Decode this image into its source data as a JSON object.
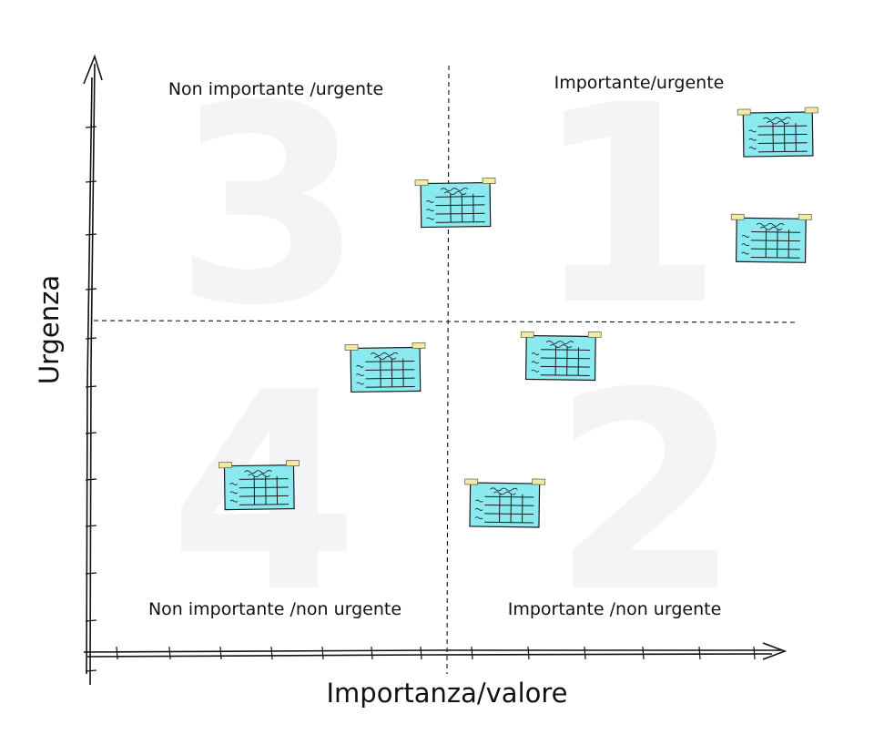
{
  "axes": {
    "x_label": "Importanza/valore",
    "y_label": "Urgenza"
  },
  "quadrants": [
    {
      "number": "1",
      "label": "Importante/urgente"
    },
    {
      "number": "2",
      "label": "Importante /non urgente"
    },
    {
      "number": "3",
      "label": "Non importante /urgente"
    },
    {
      "number": "4",
      "label": "Non importante /non urgente"
    }
  ],
  "notes": [
    {
      "name": "note-1",
      "importance": 0.98,
      "urgency": 0.88
    },
    {
      "name": "note-2",
      "importance": 0.97,
      "urgency": 0.7
    },
    {
      "name": "note-3",
      "importance": 0.52,
      "urgency": 0.76
    },
    {
      "name": "note-4",
      "importance": 0.67,
      "urgency": 0.5
    },
    {
      "name": "note-5",
      "importance": 0.42,
      "urgency": 0.48
    },
    {
      "name": "note-6",
      "importance": 0.59,
      "urgency": 0.25
    },
    {
      "name": "note-7",
      "importance": 0.24,
      "urgency": 0.28
    }
  ],
  "colors": {
    "note": "#8be9f0",
    "tape": "#f3eaa8",
    "ink": "#111111",
    "watermark": "#f4f4f6"
  }
}
